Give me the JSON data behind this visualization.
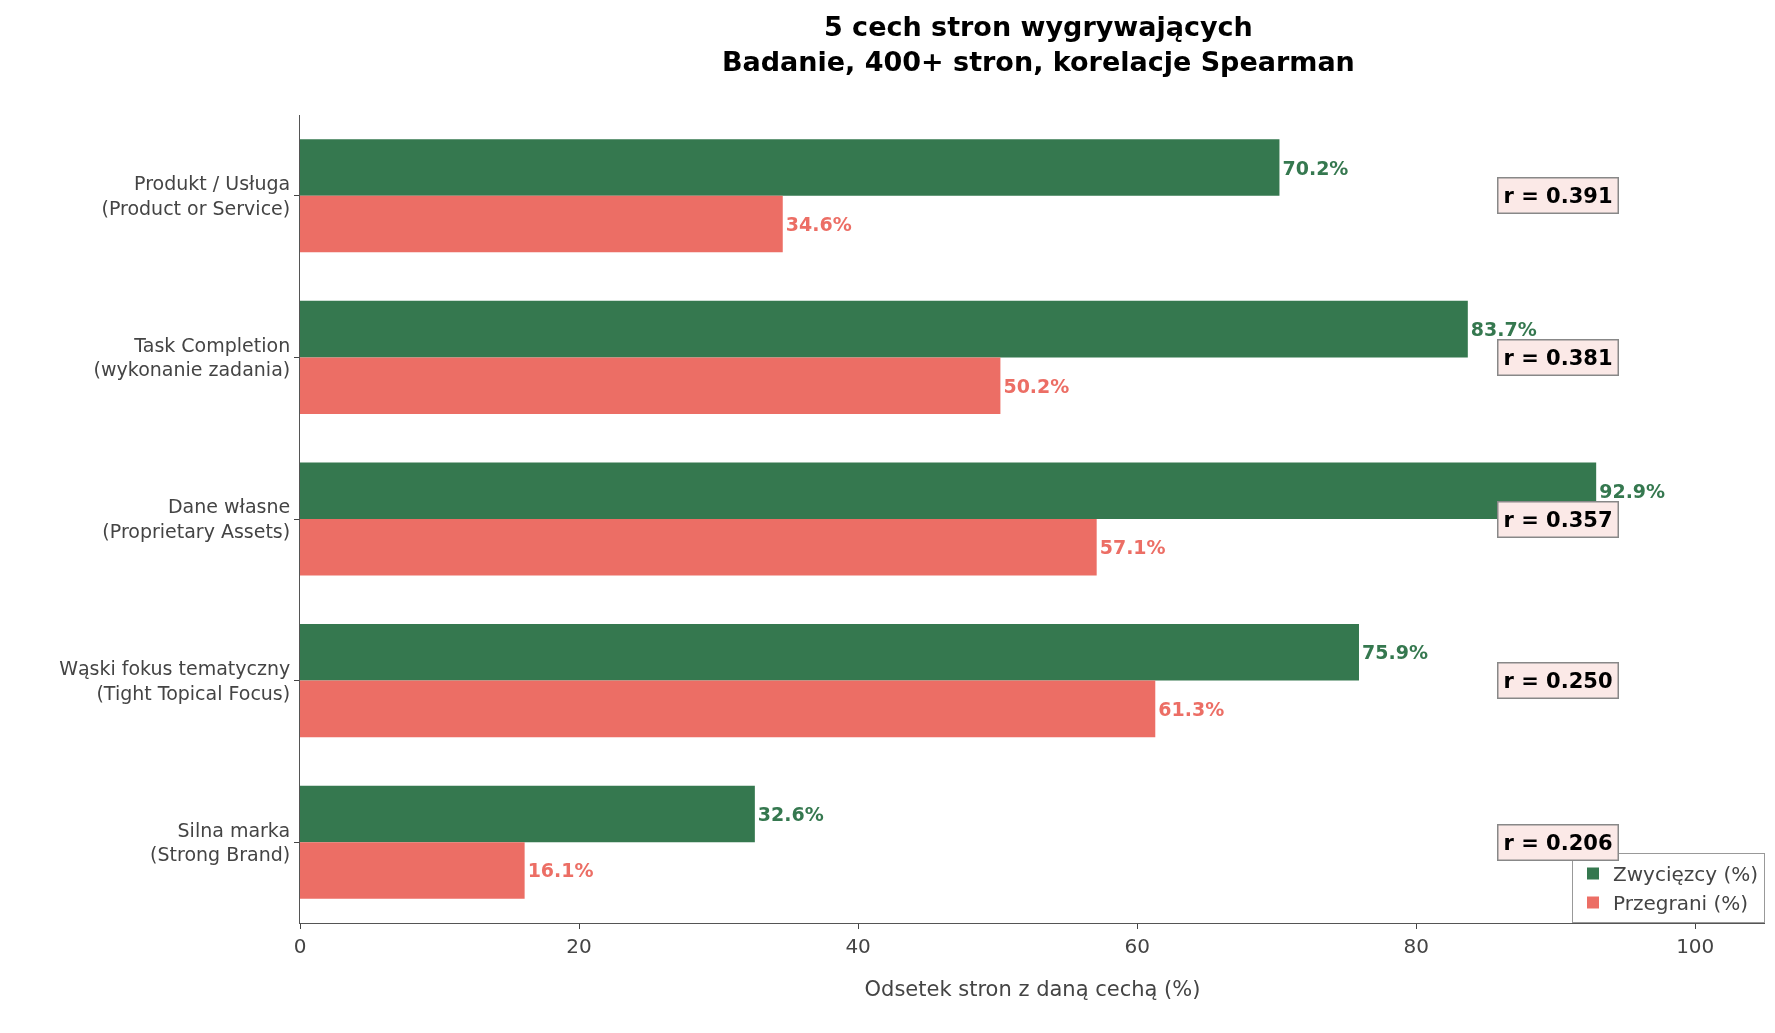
{
  "chart_data": {
    "type": "bar",
    "orientation": "horizontal",
    "title": "5 cech stron wygrywających\nBadanie, 400+ stron, korelacje Spearman",
    "xlabel": "Odsetek stron z daną cechą (%)",
    "categories": [
      "Produkt / Usługa\n(Product or Service)",
      "Task Completion\n(wykonanie zadania)",
      "Dane własne\n(Proprietary Assets)",
      "Wąski fokus tematyczny\n(Tight Topical Focus)",
      "Silna marka\n(Strong Brand)"
    ],
    "series": [
      {
        "name": "Zwycięzcy (%)",
        "color": "#35784f",
        "values": [
          70.2,
          83.7,
          92.9,
          75.9,
          32.6
        ],
        "value_labels": [
          "70.2%",
          "83.7%",
          "92.9%",
          "75.9%",
          "32.6%"
        ]
      },
      {
        "name": "Przegrani (%)",
        "color": "#ec6e65",
        "values": [
          34.6,
          50.2,
          57.1,
          61.3,
          16.1
        ],
        "value_labels": [
          "34.6%",
          "50.2%",
          "57.1%",
          "61.3%",
          "16.1%"
        ]
      }
    ],
    "annotations": [
      "r = 0.391",
      "r = 0.381",
      "r = 0.357",
      "r = 0.250",
      "r = 0.206"
    ],
    "xlim": [
      0,
      105
    ],
    "xticks": [
      0,
      20,
      40,
      60,
      80,
      100
    ],
    "grid": false,
    "legend": "bottom right"
  }
}
